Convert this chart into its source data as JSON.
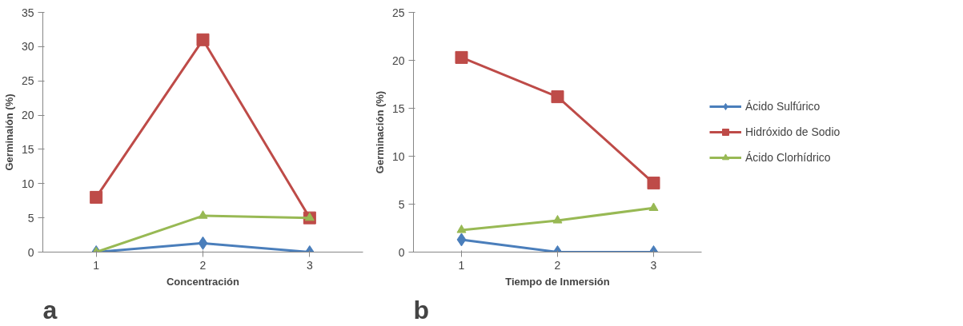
{
  "chart_data": [
    {
      "type": "line",
      "categories": [
        "1",
        "2",
        "3"
      ],
      "xlabel": "Concentración",
      "ylabel": "Germinaión (%)",
      "ylim": [
        0,
        35
      ],
      "yticks": [
        0,
        5,
        10,
        15,
        20,
        25,
        30,
        35
      ],
      "grid": false,
      "annotations": [
        "a"
      ],
      "series": [
        {
          "color": "#4a7ebb",
          "marker": "diamond",
          "values": [
            0,
            1.3,
            0
          ]
        },
        {
          "color": "#be4b48",
          "marker": "square",
          "values": [
            8,
            31,
            5
          ]
        },
        {
          "color": "#98b954",
          "marker": "triangle",
          "values": [
            0,
            5.3,
            5
          ]
        }
      ]
    },
    {
      "type": "line",
      "categories": [
        "1",
        "2",
        "3"
      ],
      "xlabel": "Tiempo de Inmersión",
      "ylabel": "Germinación (%)",
      "ylim": [
        0,
        25
      ],
      "yticks": [
        0,
        5,
        10,
        15,
        20,
        25
      ],
      "grid": false,
      "legend": "right",
      "annotations": [
        "b"
      ],
      "series": [
        {
          "name": "Ácido Sulfúrico",
          "color": "#4a7ebb",
          "marker": "diamond",
          "values": [
            1.3,
            0,
            0
          ]
        },
        {
          "name": "Hidróxido de Sodio",
          "color": "#be4b48",
          "marker": "square",
          "values": [
            20.3,
            16.2,
            7.2
          ]
        },
        {
          "name": "Ácido Clorhídrico",
          "color": "#98b954",
          "marker": "triangle",
          "values": [
            2.3,
            3.3,
            4.6
          ]
        }
      ]
    }
  ]
}
